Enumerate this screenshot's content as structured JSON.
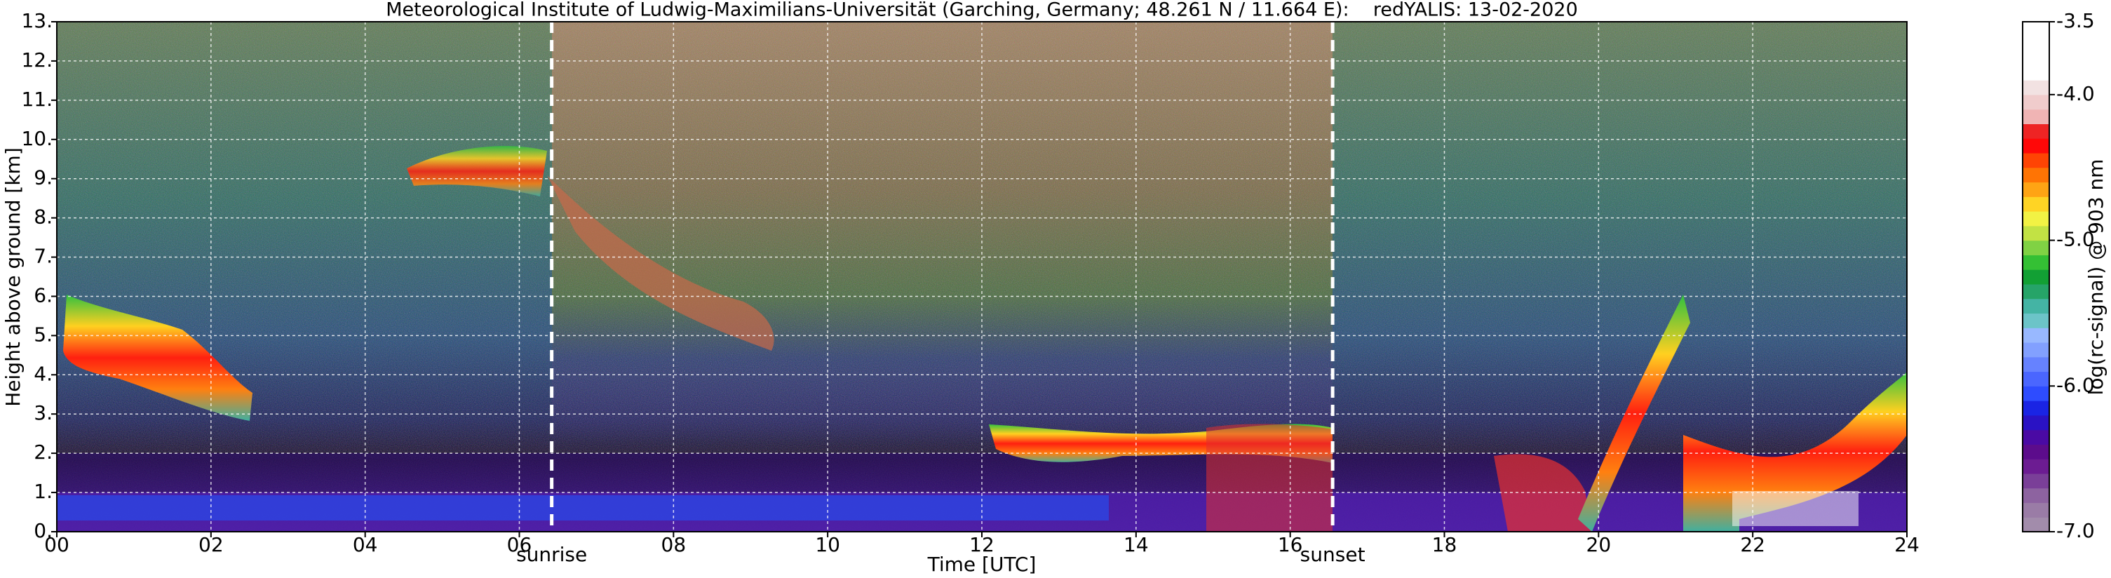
{
  "chart_data": {
    "type": "heatmap",
    "title": "Meteorological Institute of Ludwig-Maximilians-Universität (Garching, Germany; 48.261 N / 11.664 E):    redYALIS: 13-02-2020",
    "x_label": "Time [UTC]",
    "y_label": "Height above ground [km]",
    "xlim": [
      0,
      24
    ],
    "xticks": [
      {
        "value": 0,
        "label": "00"
      },
      {
        "value": 2,
        "label": "02"
      },
      {
        "value": 4,
        "label": "04"
      },
      {
        "value": 6,
        "label": "06"
      },
      {
        "value": 8,
        "label": "08"
      },
      10,
      12,
      14,
      16,
      18,
      20,
      22,
      24
    ],
    "ylim": [
      0,
      13
    ],
    "yticks": [
      {
        "value": 0,
        "label": "0."
      },
      {
        "value": 1,
        "label": "1."
      },
      {
        "value": 2,
        "label": "2."
      },
      {
        "value": 3,
        "label": "3."
      },
      {
        "value": 4,
        "label": "4."
      },
      {
        "value": 5,
        "label": "5."
      },
      {
        "value": 6,
        "label": "6."
      },
      {
        "value": 7,
        "label": "7."
      },
      {
        "value": 8,
        "label": "8."
      },
      {
        "value": 9,
        "label": "9."
      },
      {
        "value": 10,
        "label": "10."
      },
      {
        "value": 11,
        "label": "11."
      },
      {
        "value": 12,
        "label": "12."
      },
      {
        "value": 13,
        "label": "13."
      }
    ],
    "grid": true,
    "annotations": [
      {
        "text": "sunrise",
        "x": 6.42
      },
      {
        "text": "sunset",
        "x": 16.55
      }
    ],
    "colorbar": {
      "label": "log(rc-signal) @ 903 nm",
      "lim": [
        -7.0,
        -3.5
      ],
      "ticks": [
        {
          "value": -7.0,
          "label": "-7.0"
        },
        {
          "value": -6.0,
          "label": "-6.0"
        },
        {
          "value": -5.0,
          "label": "-5.0"
        },
        {
          "value": -4.0,
          "label": "-4.0"
        },
        -3.5
      ],
      "colors": [
        "#a28cab",
        "#9a7ca6",
        "#8d63a0",
        "#7a3f98",
        "#6c1c92",
        "#5c0c8c",
        "#4a0aa4",
        "#2a12c4",
        "#1a24e4",
        "#2e4cff",
        "#4a66ff",
        "#6682ff",
        "#82a0ff",
        "#98b8ff",
        "#6cc4c8",
        "#44b4a4",
        "#26a468",
        "#12a034",
        "#34c034",
        "#80d244",
        "#c2e244",
        "#f2f244",
        "#ffd424",
        "#ffa414",
        "#ff7404",
        "#ff4404",
        "#ff0808",
        "#ee2424",
        "#f0b4b4",
        "#f0cccc",
        "#f2e2e2",
        "#ffffff",
        "#ffffff",
        "#ffffff",
        "#ffffff"
      ]
    }
  }
}
